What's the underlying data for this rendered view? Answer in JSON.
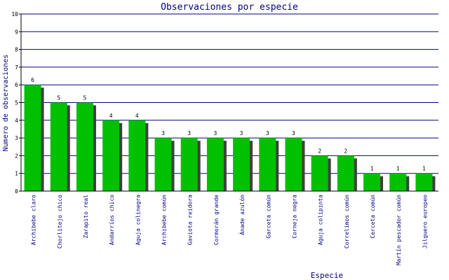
{
  "chart_data": {
    "type": "bar",
    "title": "Observaciones por especie",
    "xlabel": "Especie",
    "ylabel": "Numero de observaciones",
    "ylim": [
      0,
      10
    ],
    "yticks": [
      "0",
      "1",
      "2",
      "3",
      "4",
      "5",
      "6",
      "7",
      "8",
      "9",
      "10"
    ],
    "grid": true,
    "categories": [
      "Archibebe claro",
      "Chorlitejo chico",
      "Zarapito real",
      "Andarríos chico",
      "Aguja colinegra",
      "Archibebe común",
      "Gaviota reidora",
      "Cormorán grande",
      "Ánade azulón",
      "Garceta común",
      "Corneja negra",
      "Aguja colipinta",
      "Correlimos común",
      "Cerceta común",
      "Martín pescador común",
      "Jilguero europeo"
    ],
    "values": [
      6,
      5,
      5,
      4,
      4,
      3,
      3,
      3,
      3,
      3,
      3,
      2,
      2,
      1,
      1,
      1
    ],
    "colors": {
      "bar": "#00c000",
      "bar_shadow": "#404040",
      "grid": "#000080",
      "axis": "#000000",
      "title": "#000080",
      "text": "#000080",
      "tick_text": "#000000"
    }
  }
}
